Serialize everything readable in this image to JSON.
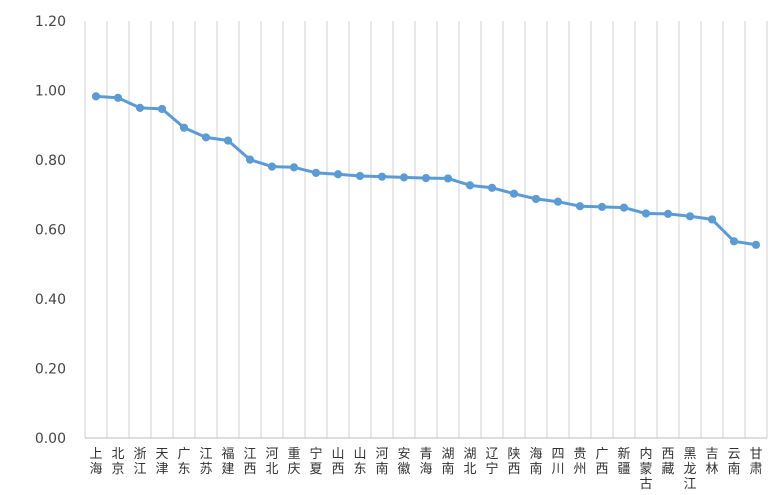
{
  "chart_data": {
    "type": "line",
    "title": "",
    "xlabel": "",
    "ylabel": "",
    "ylim": [
      0,
      1.2
    ],
    "yticks": [
      "0.00",
      "0.20",
      "0.40",
      "0.60",
      "0.80",
      "1.00",
      "1.20"
    ],
    "grid": "vertical",
    "legend": "none",
    "line_color": "#5B9BD5",
    "categories": [
      "上海",
      "北京",
      "浙江",
      "天津",
      "广东",
      "江苏",
      "福建",
      "江西",
      "河北",
      "重庆",
      "宁夏",
      "山西",
      "山东",
      "河南",
      "安徽",
      "青海",
      "湖南",
      "湖北",
      "辽宁",
      "陕西",
      "海南",
      "四川",
      "贵州",
      "广西",
      "新疆",
      "内蒙古",
      "西藏",
      "黑龙江",
      "吉林",
      "云南",
      "甘肃"
    ],
    "series": [
      {
        "values": [
          0.983,
          0.979,
          0.95,
          0.947,
          0.893,
          0.865,
          0.856,
          0.801,
          0.781,
          0.779,
          0.763,
          0.759,
          0.754,
          0.752,
          0.75,
          0.748,
          0.747,
          0.727,
          0.72,
          0.703,
          0.688,
          0.68,
          0.667,
          0.665,
          0.663,
          0.646,
          0.645,
          0.638,
          0.629,
          0.566,
          0.556
        ]
      }
    ]
  }
}
